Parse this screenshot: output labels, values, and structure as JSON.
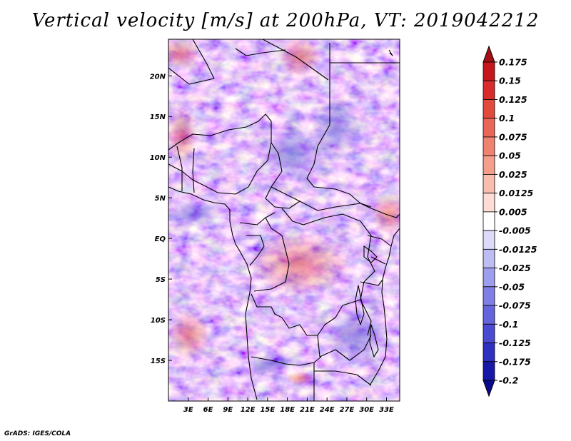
{
  "title": "Vertical velocity [m/s] at 200hPa, VT: 2019042212",
  "credit": "GrADS: IGES/COLA",
  "map": {
    "lon_range": [
      0,
      35
    ],
    "lat_range": [
      -20,
      24.5
    ],
    "lon_ticks": [
      "3E",
      "6E",
      "9E",
      "12E",
      "15E",
      "18E",
      "21E",
      "24E",
      "27E",
      "30E",
      "33E"
    ],
    "lon_tick_values": [
      3,
      6,
      9,
      12,
      15,
      18,
      21,
      24,
      27,
      30,
      33
    ],
    "lat_ticks": [
      "20N",
      "15N",
      "10N",
      "5N",
      "EQ",
      "5S",
      "10S",
      "15S"
    ],
    "lat_tick_values": [
      20,
      15,
      10,
      5,
      0,
      -5,
      -10,
      -15
    ]
  },
  "colorbar": {
    "labels": [
      "0.175",
      "0.15",
      "0.125",
      "0.1",
      "0.075",
      "0.05",
      "0.025",
      "0.0125",
      "0.005",
      "-0.005",
      "-0.0125",
      "-0.025",
      "-0.05",
      "-0.075",
      "-0.1",
      "-0.125",
      "-0.175",
      "-0.2"
    ],
    "colors": [
      "#a50f15",
      "#c4161c",
      "#d92b2b",
      "#e34a3e",
      "#ea6656",
      "#f08270",
      "#f59e8c",
      "#f9bdb0",
      "#fcdcd4",
      "#ffffff",
      "#dcdcfa",
      "#bdbdf4",
      "#9e9eee",
      "#7f7fe6",
      "#6464dc",
      "#4a4ad2",
      "#3030c0",
      "#1818a8",
      "#0a0a8c"
    ]
  }
}
